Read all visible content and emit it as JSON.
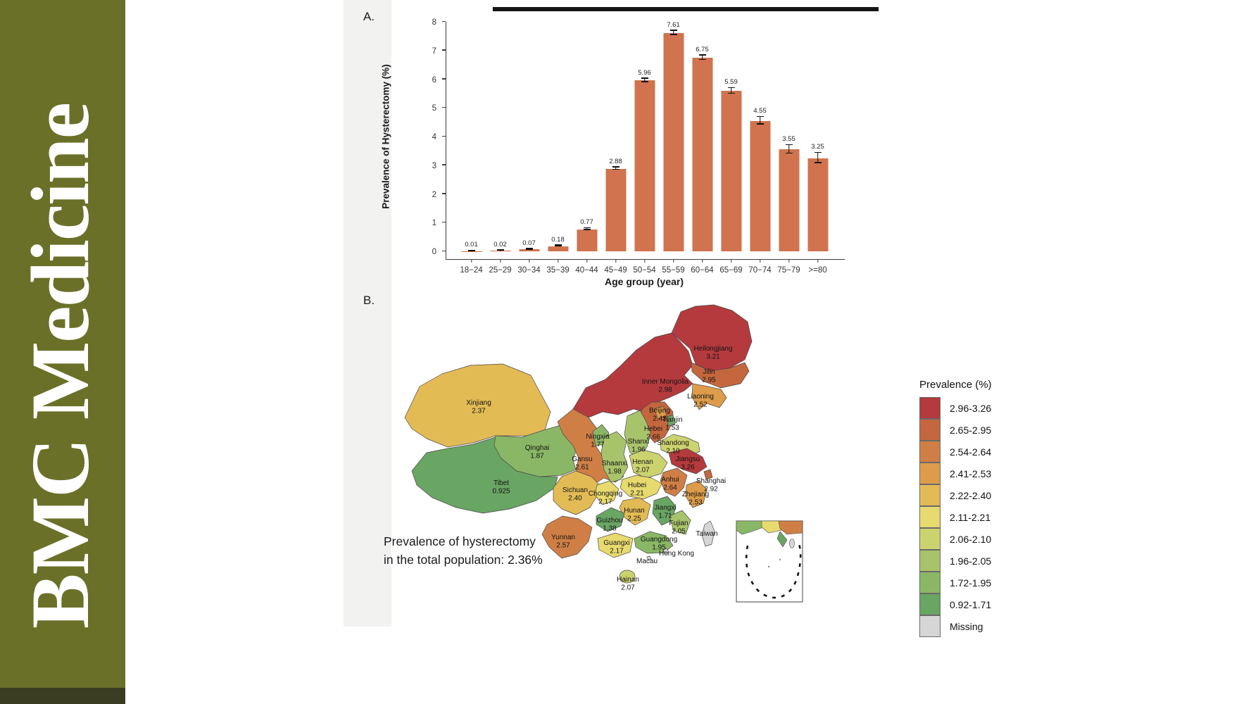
{
  "journal_banner": {
    "title": "BMC Medicine",
    "bg_color": "#6b7029",
    "footer_color": "#3a3d22",
    "text_color": "#ffffff"
  },
  "panels": {
    "a_label": "A.",
    "b_label": "B."
  },
  "chart_data": [
    {
      "type": "bar",
      "panel": "A",
      "ylabel": "Prevalence of Hysterectomy (%)",
      "xlabel": "Age group (year)",
      "ylim": [
        0,
        8
      ],
      "ytick_step": 1,
      "grid": false,
      "bar_color": "#d0734e",
      "categories": [
        "18−24",
        "25−29",
        "30−34",
        "35−39",
        "40−44",
        "45−49",
        "50−54",
        "55−59",
        "60−64",
        "65−69",
        "70−74",
        "75−79",
        ">=80"
      ],
      "values": [
        0.01,
        0.02,
        0.07,
        0.18,
        0.77,
        2.88,
        5.96,
        7.61,
        6.75,
        5.59,
        4.55,
        3.55,
        3.25
      ],
      "labels": [
        "0.01",
        "0.02",
        "0.07",
        "0.18",
        "0.77",
        "2.88",
        "5.96",
        "7.61",
        "6.75",
        "5.59",
        "4.55",
        "3.55",
        "3.25"
      ],
      "errors": [
        0.004,
        0.006,
        0.012,
        0.02,
        0.03,
        0.045,
        0.06,
        0.07,
        0.08,
        0.1,
        0.13,
        0.15,
        0.18
      ]
    },
    {
      "type": "choropleth",
      "panel": "B",
      "region_scope": "Provinces of China",
      "legend_title": "Prevalence (%)",
      "legend_position": "right",
      "legend_bins": [
        {
          "label": "2.96-3.26",
          "color": "#b43a3d"
        },
        {
          "label": "2.65-2.95",
          "color": "#c4673e"
        },
        {
          "label": "2.54-2.64",
          "color": "#cf7f46"
        },
        {
          "label": "2.41-2.53",
          "color": "#dd9c4a"
        },
        {
          "label": "2.22-2.40",
          "color": "#e3bb55"
        },
        {
          "label": "2.11-2.21",
          "color": "#e7da6e"
        },
        {
          "label": "2.06-2.10",
          "color": "#cbd36e"
        },
        {
          "label": "1.96-2.05",
          "color": "#a8c46b"
        },
        {
          "label": "1.72-1.95",
          "color": "#8ab766"
        },
        {
          "label": "0.92-1.71",
          "color": "#69a563"
        },
        {
          "label": "Missing",
          "color": "#d6d6d6"
        }
      ],
      "note_line1": "Prevalence of hysterectomy",
      "note_line2": "in the total population: 2.36%",
      "total_population_prevalence": "2.36%",
      "regions": [
        {
          "name": "Heilongjiang",
          "value": "3.21",
          "color": "#b43a3d"
        },
        {
          "name": "Inner Mongolia",
          "value": "2.98",
          "color": "#b43a3d"
        },
        {
          "name": "Jilin",
          "value": "2.95",
          "color": "#c4673e"
        },
        {
          "name": "Liaoning",
          "value": "2.52",
          "color": "#dd9c4a"
        },
        {
          "name": "Beijing",
          "value": "2.43",
          "color": "#dd9c4a"
        },
        {
          "name": "Tianjin",
          "value": "1.53",
          "color": "#69a563"
        },
        {
          "name": "Hebei",
          "value": "2.66",
          "color": "#c4673e"
        },
        {
          "name": "Shanxi",
          "value": "1.96",
          "color": "#a8c46b"
        },
        {
          "name": "Shandong",
          "value": "2.10",
          "color": "#cbd36e"
        },
        {
          "name": "Ningxia",
          "value": "1.77",
          "color": "#8ab766"
        },
        {
          "name": "Gansu",
          "value": "2.61",
          "color": "#cf7f46"
        },
        {
          "name": "Shaanxi",
          "value": "1.98",
          "color": "#a8c46b"
        },
        {
          "name": "Henan",
          "value": "2.07",
          "color": "#cbd36e"
        },
        {
          "name": "Jiangsu",
          "value": "3.26",
          "color": "#b43a3d"
        },
        {
          "name": "Shanghai",
          "value": "2.92",
          "color": "#c4673e"
        },
        {
          "name": "Anhui",
          "value": "2.64",
          "color": "#cf7f46"
        },
        {
          "name": "Zhejiang",
          "value": "2.53",
          "color": "#dd9c4a"
        },
        {
          "name": "Hubei",
          "value": "2.21",
          "color": "#e7da6e"
        },
        {
          "name": "Chongqing",
          "value": "2.17",
          "color": "#e7da6e"
        },
        {
          "name": "Sichuan",
          "value": "2.40",
          "color": "#e3bb55"
        },
        {
          "name": "Hunan",
          "value": "2.25",
          "color": "#e3bb55"
        },
        {
          "name": "Jiangxi",
          "value": "1.71",
          "color": "#69a563"
        },
        {
          "name": "Guizhou",
          "value": "1.38",
          "color": "#69a563"
        },
        {
          "name": "Yunnan",
          "value": "2.57",
          "color": "#cf7f46"
        },
        {
          "name": "Guangxi",
          "value": "2.17",
          "color": "#e7da6e"
        },
        {
          "name": "Guangdong",
          "value": "1.95",
          "color": "#8ab766"
        },
        {
          "name": "Fujian",
          "value": "2.05",
          "color": "#a8c46b"
        },
        {
          "name": "Hainan",
          "value": "2.07",
          "color": "#cbd36e"
        },
        {
          "name": "Xinjiang",
          "value": "2.37",
          "color": "#e3bb55"
        },
        {
          "name": "Qinghai",
          "value": "1.87",
          "color": "#8ab766"
        },
        {
          "name": "Tibet",
          "value": "0.925",
          "color": "#69a563"
        },
        {
          "name": "Taiwan",
          "value": "",
          "color": "#d6d6d6"
        },
        {
          "name": "Hong Kong",
          "value": "",
          "color": "#d6d6d6"
        },
        {
          "name": "Macau",
          "value": "",
          "color": "#d6d6d6"
        }
      ]
    }
  ]
}
